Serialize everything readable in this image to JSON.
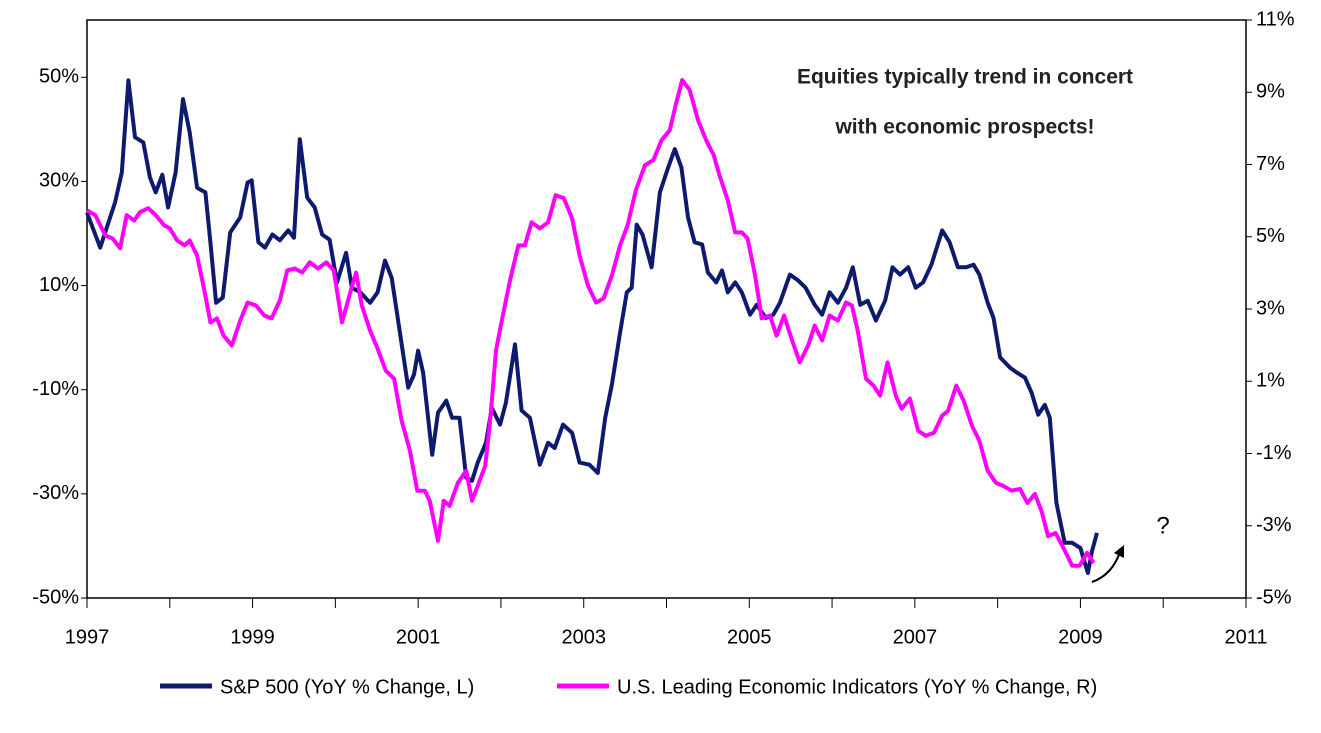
{
  "chart_data": {
    "type": "line",
    "annotations": [
      "Equities typically trend in concert",
      "with economic prospects!",
      "?"
    ],
    "xlim": [
      1997,
      2011
    ],
    "xticks": [
      1997,
      1999,
      2001,
      2003,
      2005,
      2007,
      2009,
      2011
    ],
    "xminor_ticks": [
      1998,
      2000,
      2002,
      2004,
      2006,
      2008,
      2010
    ],
    "ylim": [
      -50,
      61
    ],
    "yticks": [
      {
        "value": -50,
        "label": "-50%"
      },
      {
        "value": -30,
        "label": "-30%"
      },
      {
        "value": -10,
        "label": "-10%"
      },
      {
        "value": 10,
        "label": "10%"
      },
      {
        "value": 30,
        "label": "30%"
      },
      {
        "value": 50,
        "label": "50%"
      }
    ],
    "y2lim": [
      -5,
      11
    ],
    "y2ticks": [
      {
        "value": -5,
        "label": "-5%"
      },
      {
        "value": -3,
        "label": "-3%"
      },
      {
        "value": -1,
        "label": "-1%"
      },
      {
        "value": 1,
        "label": "1%"
      },
      {
        "value": 3,
        "label": "3%"
      },
      {
        "value": 5,
        "label": "5%"
      },
      {
        "value": 7,
        "label": "7%"
      },
      {
        "value": 9,
        "label": "9%"
      },
      {
        "value": 11,
        "label": "11%"
      }
    ],
    "series": [
      {
        "name": "S&P 500 (YoY % Change, L)",
        "color": "#0d1a6e",
        "axis": "y",
        "x": [
          1997.0,
          1997.16,
          1997.34,
          1997.42,
          1997.5,
          1997.58,
          1997.68,
          1997.76,
          1997.83,
          1997.91,
          1997.98,
          1998.07,
          1998.16,
          1998.24,
          1998.33,
          1998.43,
          1998.49,
          1998.56,
          1998.64,
          1998.73,
          1998.85,
          1998.94,
          1998.99,
          1999.07,
          1999.15,
          1999.24,
          1999.33,
          1999.43,
          1999.5,
          1999.57,
          1999.66,
          1999.75,
          1999.84,
          1999.93,
          2000.02,
          2000.13,
          2000.2,
          2000.3,
          2000.42,
          2000.51,
          2000.6,
          2000.68,
          2000.78,
          2000.88,
          2000.95,
          2001.0,
          2001.06,
          2001.17,
          2001.24,
          2001.34,
          2001.41,
          2001.5,
          2001.58,
          2001.65,
          2001.72,
          2001.82,
          2001.89,
          2001.99,
          2002.06,
          2002.17,
          2002.25,
          2002.35,
          2002.47,
          2002.57,
          2002.65,
          2002.75,
          2002.86,
          2002.95,
          2003.07,
          2003.17,
          2003.26,
          2003.34,
          2003.44,
          2003.52,
          2003.58,
          2003.64,
          2003.71,
          2003.82,
          2003.92,
          2004.02,
          2004.1,
          2004.18,
          2004.26,
          2004.34,
          2004.43,
          2004.5,
          2004.6,
          2004.67,
          2004.74,
          2004.83,
          2004.91,
          2005.01,
          2005.09,
          2005.2,
          2005.29,
          2005.37,
          2005.49,
          2005.59,
          2005.68,
          2005.79,
          2005.88,
          2005.97,
          2006.07,
          2006.17,
          2006.25,
          2006.34,
          2006.43,
          2006.53,
          2006.64,
          2006.73,
          2006.82,
          2006.92,
          2007.01,
          2007.1,
          2007.2,
          2007.33,
          2007.42,
          2007.52,
          2007.62,
          2007.71,
          2007.78,
          2007.88,
          2007.95,
          2008.03,
          2008.15,
          2008.23,
          2008.33,
          2008.41,
          2008.49,
          2008.57,
          2008.63,
          2008.71,
          2008.81,
          2008.9,
          2009.0,
          2009.09,
          2009.14,
          2009.2
        ],
        "values": [
          24,
          17.3,
          26,
          31.7,
          49.4,
          38.5,
          37.5,
          30.8,
          27.9,
          31.3,
          25,
          31.7,
          45.8,
          39.4,
          28.8,
          27.9,
          18.3,
          6.7,
          7.7,
          20.2,
          23.1,
          29.8,
          30.2,
          18.3,
          17.3,
          19.8,
          18.7,
          20.6,
          19.2,
          38.1,
          26.9,
          25,
          19.8,
          18.8,
          10.6,
          16.3,
          9.6,
          8.7,
          6.7,
          8.7,
          14.8,
          11.5,
          1,
          -9.6,
          -7.1,
          -2.5,
          -6.7,
          -22.5,
          -14.4,
          -12.1,
          -15.4,
          -15.4,
          -26.9,
          -27.5,
          -24,
          -20.2,
          -13.5,
          -16.7,
          -12.5,
          -1.3,
          -14,
          -15.4,
          -24.4,
          -20.2,
          -21.2,
          -16.7,
          -18.3,
          -24,
          -24.4,
          -26,
          -15.4,
          -9,
          1,
          8.7,
          9.6,
          21.7,
          19.8,
          13.5,
          27.9,
          32.7,
          36.2,
          32.7,
          23.1,
          18.3,
          17.9,
          12.5,
          10.6,
          12.9,
          8.7,
          10.6,
          8.7,
          4.4,
          6.3,
          3.8,
          4.4,
          6.7,
          12.1,
          11,
          9.6,
          6.3,
          4.4,
          8.7,
          6.7,
          9.6,
          13.5,
          6.3,
          7.1,
          3.3,
          7.1,
          13.5,
          12.1,
          13.5,
          9.6,
          10.6,
          14,
          20.6,
          18.3,
          13.5,
          13.5,
          14,
          12.1,
          6.7,
          3.8,
          -3.8,
          -5.8,
          -6.7,
          -7.7,
          -10.6,
          -14.8,
          -12.9,
          -15.4,
          -31.7,
          -39.4,
          -39.4,
          -40.4,
          -45.2,
          -41,
          -37.5
        ]
      },
      {
        "name": "U.S. Leading Economic Indicators (YoY % Change, R)",
        "color": "#ff00ff",
        "axis": "y2",
        "x": [
          1997.0,
          1997.1,
          1997.22,
          1997.31,
          1997.4,
          1997.48,
          1997.57,
          1997.64,
          1997.74,
          1997.83,
          1997.93,
          1998.0,
          1998.09,
          1998.18,
          1998.24,
          1998.33,
          1998.43,
          1998.49,
          1998.57,
          1998.65,
          1998.75,
          1998.85,
          1998.94,
          1999.04,
          1999.14,
          1999.23,
          1999.33,
          1999.42,
          1999.51,
          1999.6,
          1999.69,
          1999.79,
          1999.89,
          1999.98,
          2000.08,
          2000.18,
          2000.25,
          2000.32,
          2000.42,
          2000.51,
          2000.61,
          2000.71,
          2000.8,
          2000.9,
          2000.99,
          2001.08,
          2001.14,
          2001.24,
          2001.31,
          2001.38,
          2001.48,
          2001.58,
          2001.65,
          2001.72,
          2001.81,
          2001.87,
          2001.94,
          2002.01,
          2002.11,
          2002.21,
          2002.29,
          2002.37,
          2002.47,
          2002.57,
          2002.66,
          2002.76,
          2002.86,
          2002.95,
          2003.05,
          2003.15,
          2003.24,
          2003.34,
          2003.44,
          2003.53,
          2003.63,
          2003.74,
          2003.84,
          2003.94,
          2004.04,
          2004.11,
          2004.19,
          2004.28,
          2004.38,
          2004.48,
          2004.57,
          2004.64,
          2004.74,
          2004.83,
          2004.91,
          2004.98,
          2005.07,
          2005.15,
          2005.25,
          2005.33,
          2005.42,
          2005.51,
          2005.61,
          2005.71,
          2005.79,
          2005.88,
          2005.97,
          2006.07,
          2006.17,
          2006.24,
          2006.31,
          2006.41,
          2006.5,
          2006.58,
          2006.67,
          2006.77,
          2006.84,
          2006.94,
          2007.04,
          2007.13,
          2007.23,
          2007.33,
          2007.4,
          2007.5,
          2007.59,
          2007.69,
          2007.78,
          2007.88,
          2007.98,
          2008.07,
          2008.17,
          2008.27,
          2008.36,
          2008.45,
          2008.53,
          2008.61,
          2008.7,
          2008.8,
          2008.9,
          2008.99,
          2009.08,
          2009.16
        ],
        "values": [
          5.73,
          5.6,
          5.04,
          4.95,
          4.68,
          5.6,
          5.45,
          5.68,
          5.79,
          5.6,
          5.32,
          5.23,
          4.9,
          4.76,
          4.9,
          4.48,
          3.37,
          2.63,
          2.74,
          2.26,
          1.99,
          2.68,
          3.18,
          3.1,
          2.82,
          2.74,
          3.24,
          4.07,
          4.12,
          4.01,
          4.29,
          4.12,
          4.29,
          4.07,
          2.63,
          3.46,
          4.01,
          3.1,
          2.4,
          1.9,
          1.29,
          1.07,
          -0.09,
          -0.92,
          -2.03,
          -2.03,
          -2.31,
          -3.42,
          -2.31,
          -2.45,
          -1.81,
          -1.48,
          -2.31,
          -1.9,
          -1.34,
          -0.09,
          1.85,
          2.68,
          3.79,
          4.76,
          4.76,
          5.4,
          5.23,
          5.4,
          6.15,
          6.07,
          5.51,
          4.48,
          3.65,
          3.18,
          3.29,
          3.93,
          4.76,
          5.32,
          6.29,
          6.98,
          7.12,
          7.67,
          7.95,
          8.64,
          9.34,
          9.06,
          8.23,
          7.67,
          7.26,
          6.7,
          6.01,
          5.12,
          5.12,
          4.95,
          3.93,
          2.74,
          2.82,
          2.26,
          2.82,
          2.18,
          1.52,
          1.99,
          2.54,
          2.13,
          2.82,
          2.68,
          3.18,
          3.1,
          2.4,
          1.07,
          0.88,
          0.6,
          1.52,
          0.6,
          0.24,
          0.52,
          -0.37,
          -0.51,
          -0.43,
          0.05,
          0.18,
          0.88,
          0.46,
          -0.23,
          -0.65,
          -1.48,
          -1.81,
          -1.9,
          -2.03,
          -1.98,
          -2.37,
          -2.12,
          -2.59,
          -3.29,
          -3.2,
          -3.64,
          -4.11,
          -4.11,
          -3.75,
          -4.03
        ]
      }
    ]
  }
}
